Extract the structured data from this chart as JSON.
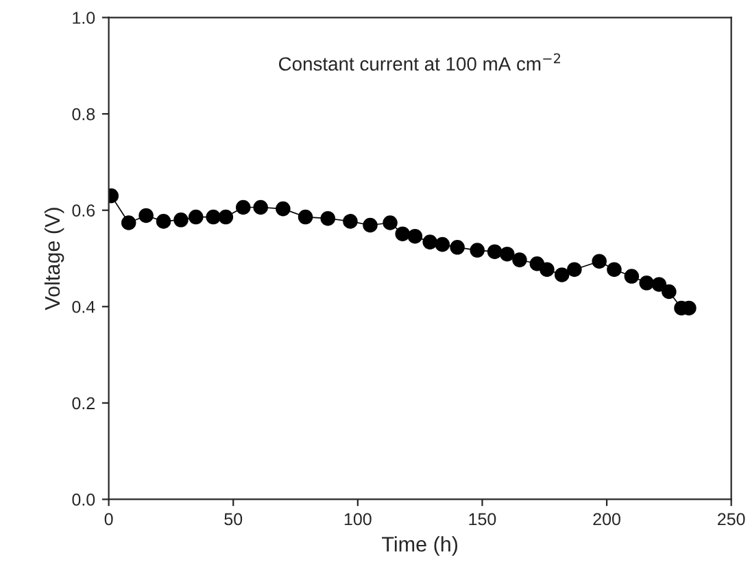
{
  "chart_data": {
    "type": "line",
    "xlabel": "Time (h)",
    "ylabel": "Voltage (V)",
    "annotations": [
      "Constant current at 100 mA cm$^{−2}$"
    ],
    "xlim": [
      0,
      250
    ],
    "xticks": [
      0,
      50,
      100,
      150,
      200,
      250
    ],
    "ylim": [
      0.0,
      1.0
    ],
    "yticks": [
      {
        "value": 0,
        "label": "0.0"
      },
      0.2,
      0.4,
      0.6,
      0.8,
      {
        "value": 1,
        "label": "1.0"
      }
    ],
    "marker": "circle",
    "line_style": "solid",
    "grid": false,
    "legend": false,
    "series": [
      {
        "color": "#000000",
        "x": [
          1,
          8,
          15,
          22,
          29,
          35,
          42,
          47,
          54,
          61,
          70,
          79,
          88,
          97,
          105,
          113,
          118,
          123,
          129,
          134,
          140,
          148,
          155,
          160,
          165,
          172,
          176,
          182,
          187,
          197,
          203,
          210,
          216,
          221,
          225,
          230,
          233
        ],
        "values": [
          0.63,
          0.574,
          0.589,
          0.577,
          0.58,
          0.586,
          0.586,
          0.586,
          0.606,
          0.606,
          0.603,
          0.586,
          0.583,
          0.577,
          0.569,
          0.574,
          0.551,
          0.546,
          0.534,
          0.529,
          0.523,
          0.517,
          0.514,
          0.509,
          0.497,
          0.489,
          0.477,
          0.466,
          0.477,
          0.494,
          0.477,
          0.463,
          0.449,
          0.446,
          0.431,
          0.397,
          0.397
        ]
      }
    ]
  }
}
